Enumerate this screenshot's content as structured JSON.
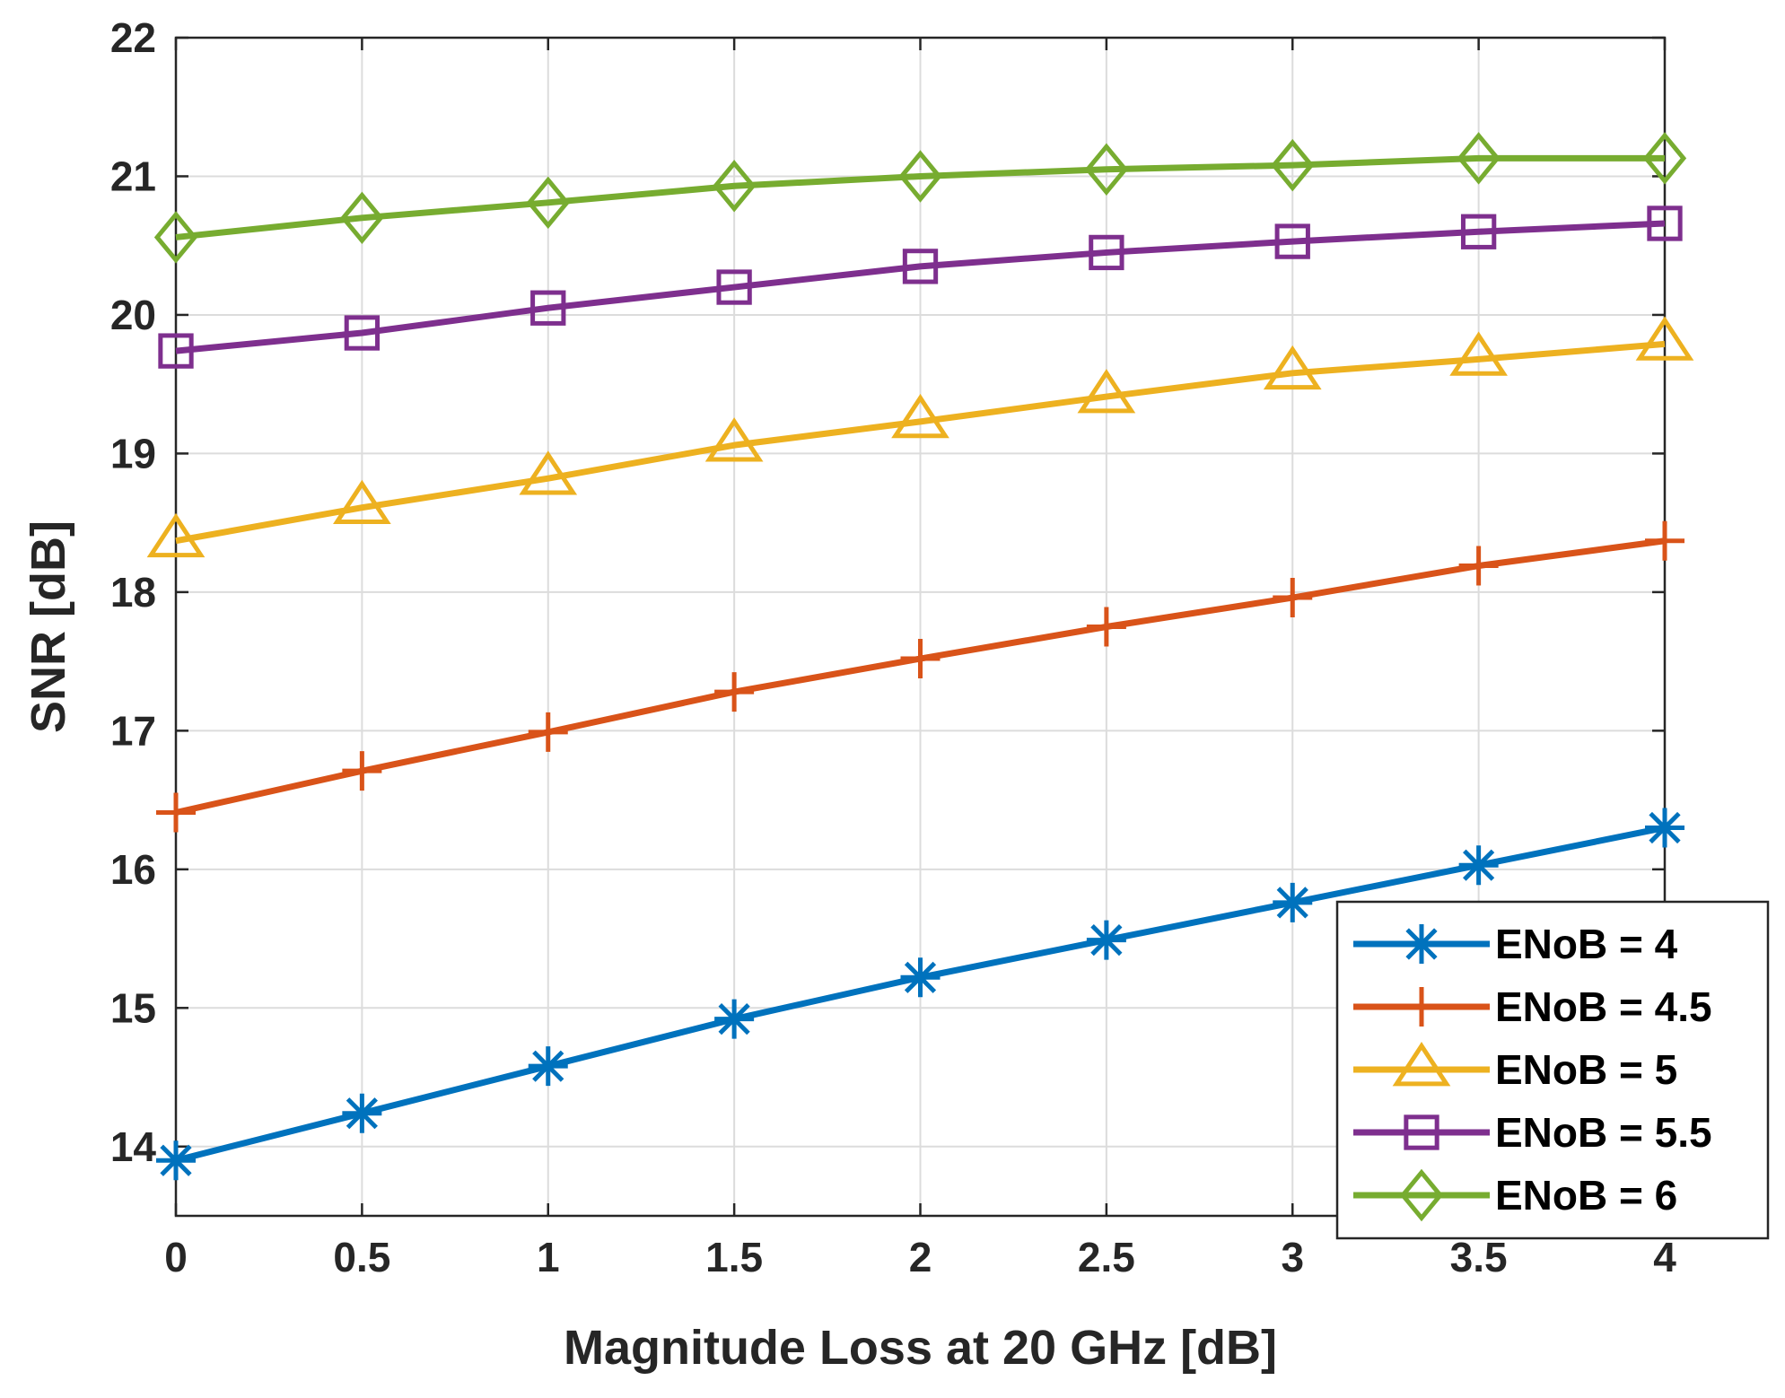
{
  "chart_data": {
    "type": "line",
    "title": "",
    "xlabel": "Magnitude Loss at 20 GHz [dB]",
    "ylabel": "SNR [dB]",
    "xlim": [
      0,
      4
    ],
    "ylim": [
      13.5,
      22
    ],
    "xticks": [
      0,
      0.5,
      1,
      1.5,
      2,
      2.5,
      3,
      3.5,
      4
    ],
    "xtick_labels": [
      "0",
      "0.5",
      "1",
      "1.5",
      "2",
      "2.5",
      "3",
      "3.5",
      "4"
    ],
    "yticks": [
      14,
      15,
      16,
      17,
      18,
      19,
      20,
      21,
      22
    ],
    "ytick_labels": [
      "14",
      "15",
      "16",
      "17",
      "18",
      "19",
      "20",
      "21",
      "22"
    ],
    "grid": true,
    "legend_position": "bottom-right",
    "x": [
      0,
      0.5,
      1,
      1.5,
      2,
      2.5,
      3,
      3.5,
      4
    ],
    "series": [
      {
        "name": "ENoB = 4",
        "color": "#0072BD",
        "marker": "asterisk",
        "values": [
          13.9,
          14.24,
          14.58,
          14.92,
          15.22,
          15.49,
          15.76,
          16.03,
          16.3
        ]
      },
      {
        "name": "ENoB = 4.5",
        "color": "#D95319",
        "marker": "plus",
        "values": [
          16.41,
          16.71,
          16.99,
          17.28,
          17.52,
          17.75,
          17.96,
          18.19,
          18.37
        ]
      },
      {
        "name": "ENoB = 5",
        "color": "#EDB120",
        "marker": "triangle",
        "values": [
          18.37,
          18.61,
          18.82,
          19.06,
          19.23,
          19.41,
          19.58,
          19.68,
          19.79
        ]
      },
      {
        "name": "ENoB = 5.5",
        "color": "#7E2F8E",
        "marker": "square",
        "values": [
          19.74,
          19.87,
          20.05,
          20.2,
          20.35,
          20.45,
          20.53,
          20.6,
          20.66
        ]
      },
      {
        "name": "ENoB = 6",
        "color": "#77AC30",
        "marker": "diamond",
        "values": [
          20.56,
          20.7,
          20.81,
          20.93,
          21.0,
          21.05,
          21.08,
          21.13,
          21.13
        ]
      }
    ]
  }
}
